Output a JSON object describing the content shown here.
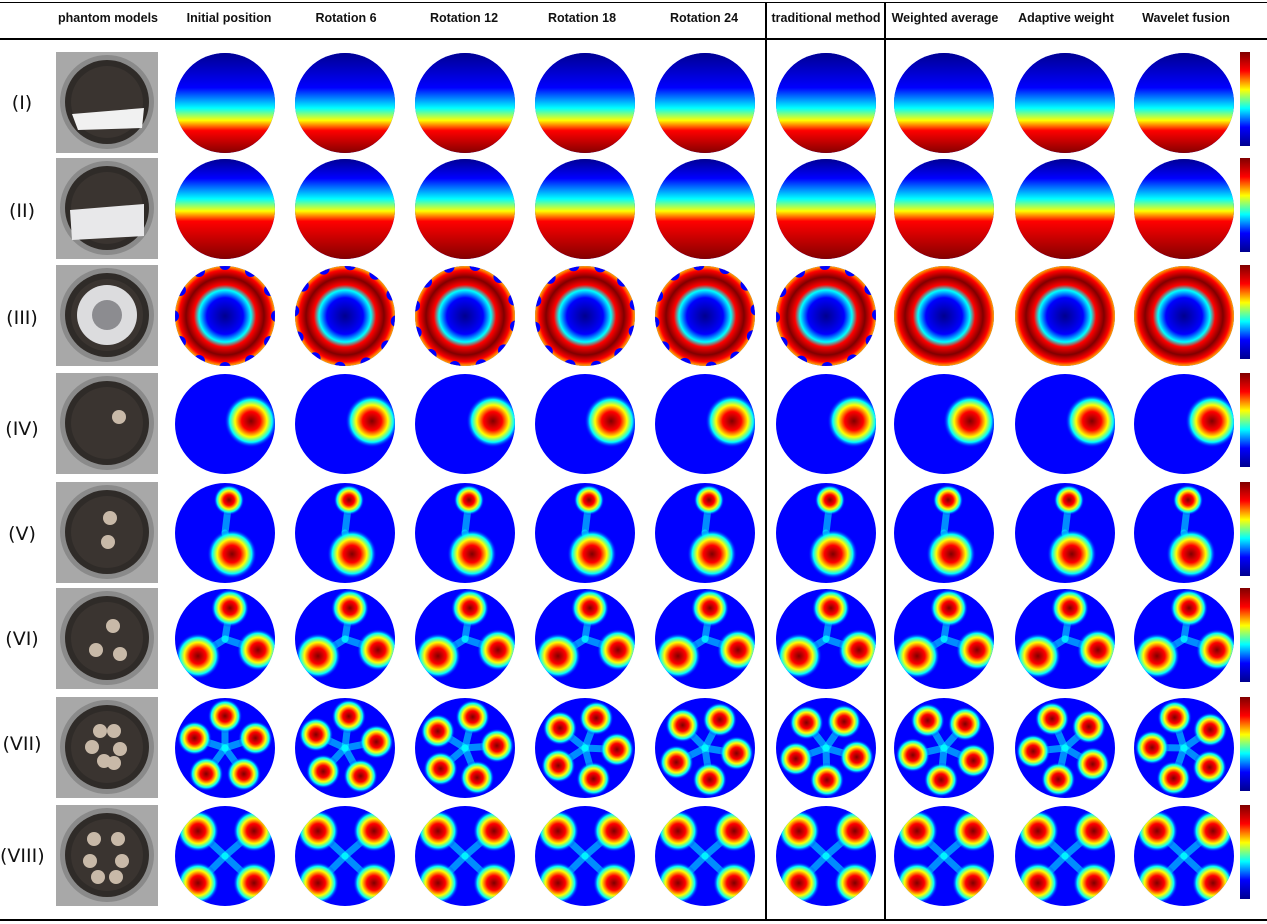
{
  "headers": {
    "phantom": "phantom models",
    "initial": "Initial position",
    "rot6": "Rotation 6",
    "rot12": "Rotation 12",
    "rot18": "Rotation 18",
    "rot24": "Rotation 24",
    "traditional": "traditional method",
    "weighted": "Weighted average",
    "adaptive": "Adaptive weight",
    "wavelet": "Wavelet fusion"
  },
  "rows": [
    {
      "label": "(I)",
      "pattern": "bottom-band-thin"
    },
    {
      "label": "(II)",
      "pattern": "bottom-band-wide"
    },
    {
      "label": "(III)",
      "pattern": "ring"
    },
    {
      "label": "(IV)",
      "pattern": "single-spot"
    },
    {
      "label": "(V)",
      "pattern": "two-spots"
    },
    {
      "label": "(VI)",
      "pattern": "three-spots"
    },
    {
      "label": "(VII)",
      "pattern": "five-spots"
    },
    {
      "label": "(VIII)",
      "pattern": "four-spots"
    }
  ],
  "colors": {
    "colormap": [
      "#00008f",
      "#0000ff",
      "#00ffff",
      "#ffff00",
      "#ff0000",
      "#800000"
    ]
  }
}
